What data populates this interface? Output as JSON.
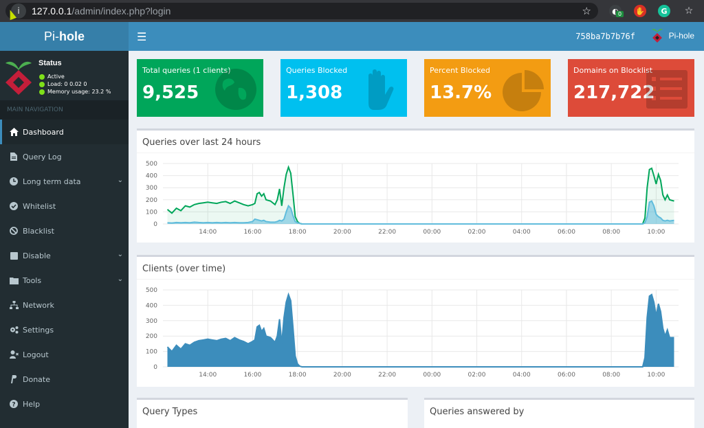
{
  "browser": {
    "url_host": "127.0.0.1",
    "url_path": "/admin/index.php?login",
    "ext_badge": "0"
  },
  "header": {
    "logo_pre": "Pi-",
    "logo_bold": "hole",
    "hostname": "758ba7b7b76f",
    "user": "Pi-hole"
  },
  "sidebar": {
    "status_title": "Status",
    "status_active": "Active",
    "status_load": "Load:  0  0.02  0",
    "status_memory": "Memory usage:  23.2 %",
    "nav_header": "MAIN NAVIGATION",
    "items": [
      {
        "label": "Dashboard",
        "icon": "home-icon"
      },
      {
        "label": "Query Log",
        "icon": "file-icon"
      },
      {
        "label": "Long term data",
        "icon": "clock-icon"
      },
      {
        "label": "Whitelist",
        "icon": "check-circle-icon"
      },
      {
        "label": "Blacklist",
        "icon": "ban-icon"
      },
      {
        "label": "Disable",
        "icon": "stop-icon"
      },
      {
        "label": "Tools",
        "icon": "folder-icon"
      },
      {
        "label": "Network",
        "icon": "network-icon"
      },
      {
        "label": "Settings",
        "icon": "gears-icon"
      },
      {
        "label": "Logout",
        "icon": "user-times-icon"
      },
      {
        "label": "Donate",
        "icon": "paypal-icon"
      },
      {
        "label": "Help",
        "icon": "question-circle-icon"
      }
    ]
  },
  "stats": [
    {
      "label": "Total queries (1 clients)",
      "value": "9,525",
      "color": "#00a65a",
      "icon": "globe-icon"
    },
    {
      "label": "Queries Blocked",
      "value": "1,308",
      "color": "#00c0ef",
      "icon": "hand-icon"
    },
    {
      "label": "Percent Blocked",
      "value": "13.7%",
      "color": "#f39c12",
      "icon": "pie-chart-icon"
    },
    {
      "label": "Domains on Blocklist",
      "value": "217,722",
      "color": "#dd4b39",
      "icon": "list-icon"
    }
  ],
  "panels": {
    "queries_title": "Queries over last 24 hours",
    "clients_title": "Clients (over time)",
    "query_types_title": "Query Types",
    "answered_by_title": "Queries answered by"
  },
  "chart_data": [
    {
      "type": "area",
      "ylim": [
        0,
        500
      ],
      "yticks": [
        "0",
        "100",
        "200",
        "300",
        "400",
        "500"
      ],
      "xticks": [
        "14:00",
        "16:00",
        "18:00",
        "20:00",
        "22:00",
        "00:00",
        "02:00",
        "04:00",
        "06:00",
        "08:00",
        "10:00"
      ],
      "x_hours": [
        12.2,
        12.4,
        12.6,
        12.8,
        13.0,
        13.2,
        13.4,
        13.6,
        13.8,
        14.0,
        14.2,
        14.4,
        14.6,
        14.8,
        15.0,
        15.2,
        15.4,
        15.6,
        15.8,
        16.0,
        16.1,
        16.2,
        16.3,
        16.4,
        16.5,
        16.6,
        16.8,
        17.0,
        17.1,
        17.2,
        17.3,
        17.4,
        17.5,
        17.6,
        17.7,
        17.8,
        17.9,
        18.0,
        18.1,
        18.2,
        18.3,
        18.5,
        33.4,
        33.5,
        33.6,
        33.7,
        33.8,
        33.9,
        34.0,
        34.1,
        34.2,
        34.3,
        34.4,
        34.5,
        34.6,
        34.8
      ],
      "series": [
        {
          "color": "#00a65a",
          "values": [
            120,
            90,
            130,
            110,
            150,
            140,
            160,
            170,
            175,
            180,
            175,
            170,
            180,
            185,
            170,
            190,
            175,
            160,
            150,
            160,
            170,
            250,
            260,
            230,
            250,
            200,
            190,
            160,
            200,
            290,
            150,
            300,
            410,
            470,
            420,
            250,
            60,
            20,
            5,
            0,
            0,
            0,
            0,
            50,
            300,
            450,
            460,
            400,
            330,
            410,
            360,
            240,
            200,
            240,
            200,
            190
          ]
        },
        {
          "color": "#60bcdc",
          "values": [
            10,
            8,
            12,
            10,
            12,
            10,
            15,
            12,
            10,
            12,
            10,
            12,
            10,
            12,
            10,
            12,
            10,
            10,
            12,
            20,
            40,
            35,
            30,
            25,
            30,
            20,
            15,
            15,
            20,
            30,
            25,
            40,
            100,
            150,
            130,
            70,
            20,
            10,
            5,
            0,
            0,
            0,
            0,
            10,
            60,
            180,
            190,
            150,
            80,
            60,
            50,
            30,
            25,
            30,
            25,
            30
          ]
        }
      ]
    },
    {
      "type": "area",
      "ylim": [
        0,
        500
      ],
      "yticks": [
        "0",
        "100",
        "200",
        "300",
        "400",
        "500"
      ],
      "xticks": [
        "14:00",
        "16:00",
        "18:00",
        "20:00",
        "22:00",
        "00:00",
        "02:00",
        "04:00",
        "06:00",
        "08:00",
        "10:00"
      ],
      "x_hours": [
        12.2,
        12.4,
        12.6,
        12.8,
        13.0,
        13.2,
        13.4,
        13.6,
        13.8,
        14.0,
        14.2,
        14.4,
        14.6,
        14.8,
        15.0,
        15.2,
        15.4,
        15.6,
        15.8,
        16.0,
        16.1,
        16.2,
        16.3,
        16.4,
        16.5,
        16.6,
        16.8,
        17.0,
        17.1,
        17.2,
        17.3,
        17.4,
        17.5,
        17.6,
        17.7,
        17.8,
        17.9,
        18.0,
        18.1,
        18.2,
        18.3,
        18.5,
        33.4,
        33.5,
        33.6,
        33.7,
        33.8,
        33.9,
        34.0,
        34.1,
        34.2,
        34.3,
        34.4,
        34.5,
        34.6,
        34.8
      ],
      "series": [
        {
          "color": "#3c8dbc",
          "values": [
            130,
            100,
            140,
            115,
            150,
            140,
            160,
            170,
            175,
            180,
            175,
            170,
            180,
            185,
            170,
            190,
            175,
            165,
            150,
            165,
            175,
            260,
            270,
            230,
            250,
            200,
            190,
            160,
            200,
            310,
            150,
            320,
            420,
            470,
            430,
            260,
            70,
            20,
            5,
            0,
            0,
            0,
            0,
            60,
            320,
            460,
            470,
            420,
            330,
            410,
            360,
            250,
            200,
            240,
            190,
            190
          ]
        }
      ]
    }
  ]
}
